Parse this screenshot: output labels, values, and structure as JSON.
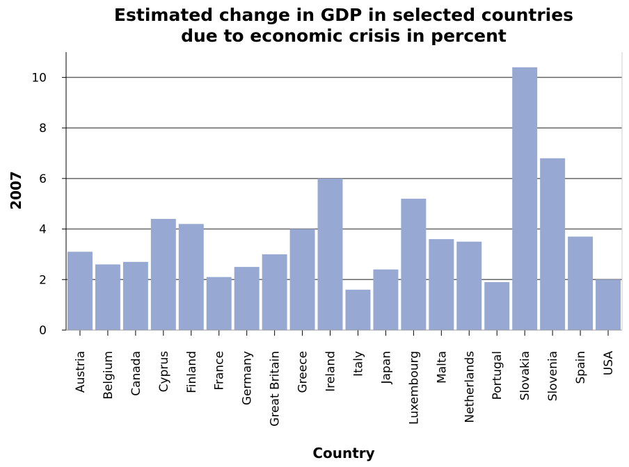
{
  "chart_data": {
    "type": "bar",
    "title_lines": [
      "Estimated change in GDP in selected countries",
      "due to economic crisis in percent"
    ],
    "xlabel": "Country",
    "ylabel": "2007",
    "categories": [
      "Austria",
      "Belgium",
      "Canada",
      "Cyprus",
      "Finland",
      "France",
      "Germany",
      "Great Britain",
      "Greece",
      "Ireland",
      "Italy",
      "Japan",
      "Luxembourg",
      "Malta",
      "Netherlands",
      "Portugal",
      "Slovakia",
      "Slovenia",
      "Spain",
      "USA"
    ],
    "values": [
      3.1,
      2.6,
      2.7,
      4.4,
      4.2,
      2.1,
      2.5,
      3.0,
      4.0,
      6.0,
      1.6,
      2.4,
      5.2,
      3.6,
      3.5,
      1.9,
      10.4,
      6.8,
      3.7,
      2.0
    ],
    "yticks": [
      0,
      2,
      4,
      6,
      8,
      10
    ],
    "ylim": [
      0,
      11
    ],
    "grid": true,
    "legend": "none",
    "colors": {
      "bar": "#97a9d3",
      "grid": "#666666",
      "axis": "#000000",
      "background": "#ffffff"
    }
  }
}
